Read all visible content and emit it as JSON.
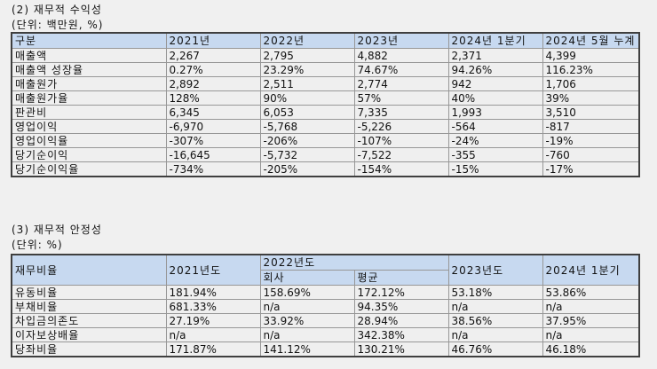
{
  "colors": {
    "page_bg": "#f0f0f0",
    "header_bg": "#c7d9f0",
    "cell_bg": "#efefef",
    "outer_border": "#3f3f3f",
    "inner_border": "#979797"
  },
  "section1": {
    "title": "(2) 재무적 수익성",
    "unit": "(단위: 백만원, %)",
    "table": {
      "headers": [
        "구분",
        "2021년",
        "2022년",
        "2023년",
        "2024년 1분기",
        "2024년 5월 누계"
      ],
      "rows": [
        {
          "label": "매출액",
          "values": [
            "2,267",
            "2,795",
            "4,882",
            "2,371",
            "4,399"
          ]
        },
        {
          "label": "매출액 성장율",
          "values": [
            "0.27%",
            "23.29%",
            "74.67%",
            "94.26%",
            "116.23%"
          ]
        },
        {
          "label": "매출원가",
          "values": [
            "2,892",
            "2,511",
            "2,774",
            "942",
            "1,706"
          ]
        },
        {
          "label": "매출원가율",
          "values": [
            "128%",
            "90%",
            "57%",
            "40%",
            "39%"
          ]
        },
        {
          "label": "판관비",
          "values": [
            "6,345",
            "6,053",
            "7,335",
            "1,993",
            "3,510"
          ]
        },
        {
          "label": "영업이익",
          "values": [
            "-6,970",
            "-5,768",
            "-5,226",
            "-564",
            "-817"
          ]
        },
        {
          "label": "영업이익율",
          "values": [
            "-307%",
            "-206%",
            "-107%",
            "-24%",
            "-19%"
          ]
        },
        {
          "label": "당기순이익",
          "values": [
            "-16,645",
            "-5,732",
            "-7,522",
            "-355",
            "-760"
          ]
        },
        {
          "label": "당기순이익율",
          "values": [
            "-734%",
            "-205%",
            "-154%",
            "-15%",
            "-17%"
          ]
        }
      ]
    }
  },
  "section2": {
    "title": "(3) 재무적 안정성",
    "unit": "(단위: %)",
    "table": {
      "header": {
        "col1": "재무비율",
        "col2": "2021년도",
        "group2022": "2022년도",
        "sub_company": "회사",
        "sub_average": "평균",
        "col4": "2023년도",
        "col5": "2024년 1분기"
      },
      "rows": [
        {
          "label": "유동비율",
          "values": [
            "181.94%",
            "158.69%",
            "172.12%",
            "53.18%",
            "53.86%"
          ]
        },
        {
          "label": "부채비율",
          "values": [
            "681.33%",
            "n/a",
            "94.35%",
            "n/a",
            "n/a"
          ]
        },
        {
          "label": "차입금의존도",
          "values": [
            "27.19%",
            "33.92%",
            "28.94%",
            "38.56%",
            "37.95%"
          ]
        },
        {
          "label": "이자보상배율",
          "values": [
            "n/a",
            "n/a",
            "342.38%",
            "n/a",
            "n/a"
          ]
        },
        {
          "label": "당좌비율",
          "values": [
            "171.87%",
            "141.12%",
            "130.21%",
            "46.76%",
            "46.18%"
          ]
        }
      ]
    }
  }
}
